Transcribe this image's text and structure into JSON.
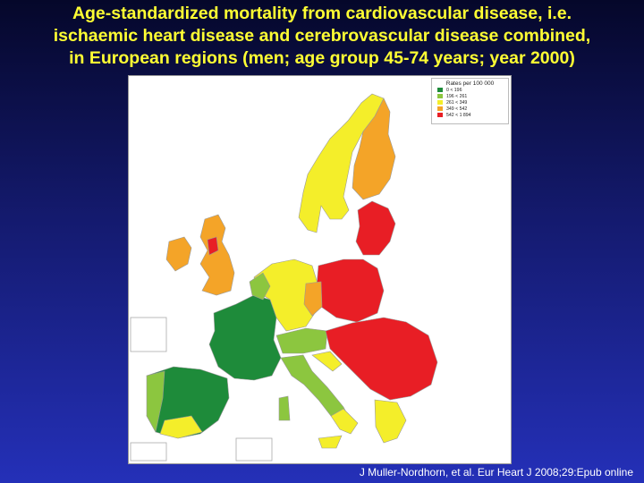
{
  "title": {
    "lines": [
      "Age-standardized mortality from cardiovascular disease, i.e.",
      "ischaemic heart disease and cerebrovascular disease combined,",
      "in European regions (men; age group 45-74 years; year 2000)"
    ]
  },
  "legend": {
    "title": "Rates per 100 000",
    "items": [
      {
        "label": "0 < 196",
        "color": "#1e8b3a"
      },
      {
        "label": "196 < 261",
        "color": "#8cc63f"
      },
      {
        "label": "261 < 349",
        "color": "#f4ee2a"
      },
      {
        "label": "349 < 542",
        "color": "#f4a428"
      },
      {
        "label": "542 < 1 894",
        "color": "#e81e25"
      }
    ]
  },
  "map": {
    "regions": [
      {
        "name": "scandinavia",
        "rate_class": 2
      },
      {
        "name": "finland",
        "rate_class": 3
      },
      {
        "name": "baltic",
        "rate_class": 4
      },
      {
        "name": "uk",
        "rate_class": 3
      },
      {
        "name": "scotland-west",
        "rate_class": 4
      },
      {
        "name": "ireland",
        "rate_class": 3
      },
      {
        "name": "france",
        "rate_class": 0
      },
      {
        "name": "iberia",
        "rate_class": 0
      },
      {
        "name": "italy",
        "rate_class": 1
      },
      {
        "name": "germany",
        "rate_class": 2
      },
      {
        "name": "poland",
        "rate_class": 4
      },
      {
        "name": "balkans",
        "rate_class": 4
      },
      {
        "name": "greece",
        "rate_class": 2
      }
    ]
  },
  "citation": "J Muller-Nordhorn, et al. Eur Heart J 2008;29:Epub online"
}
